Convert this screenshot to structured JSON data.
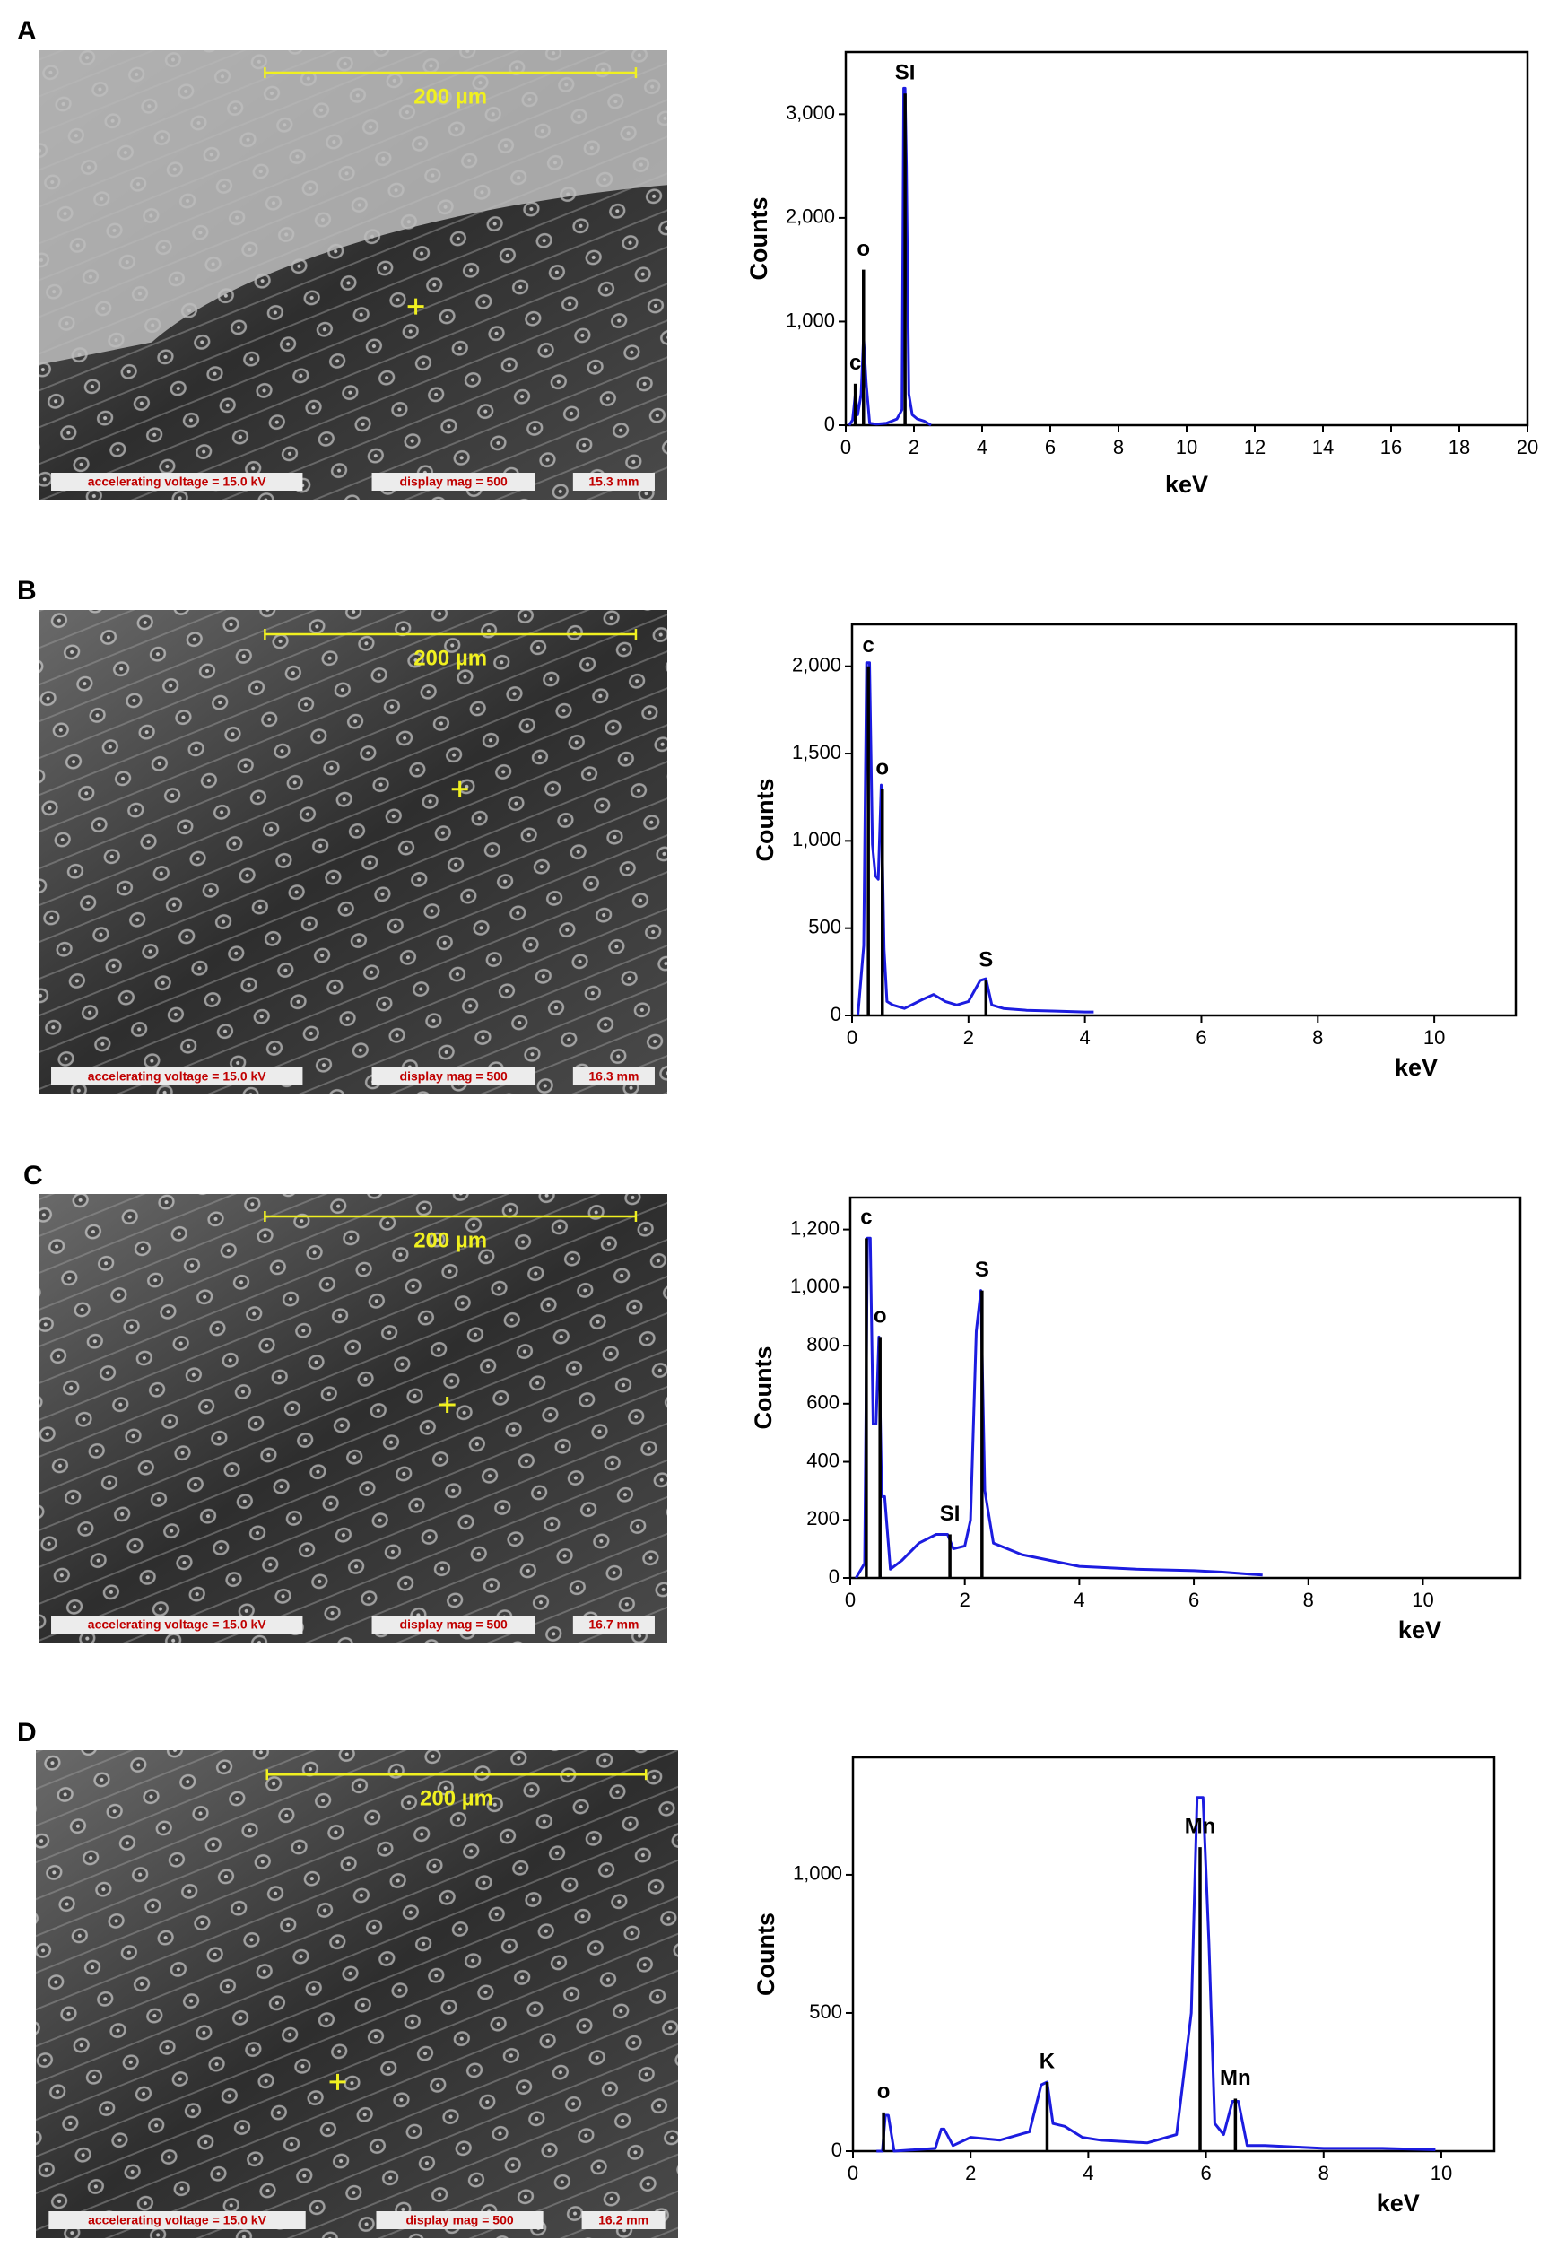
{
  "images": [
    {
      "panel": "A",
      "scale_bar": "200 µm",
      "voltage": "accelerating voltage = 15.0 kV",
      "mag": "display mag = 500",
      "distance": "15.3 mm"
    },
    {
      "panel": "B",
      "scale_bar": "200 µm",
      "voltage": "accelerating voltage = 15.0 kV",
      "mag": "display mag = 500",
      "distance": "16.3 mm"
    },
    {
      "panel": "C",
      "scale_bar": "200 µm",
      "voltage": "accelerating voltage = 15.0 kV",
      "mag": "display mag = 500",
      "distance": "16.7 mm"
    },
    {
      "panel": "D",
      "scale_bar": "200 µm",
      "voltage": "accelerating voltage = 15.0 kV",
      "mag": "display mag = 500",
      "distance": "16.2 mm"
    }
  ],
  "chart_data": [
    {
      "type": "line",
      "x_label": "keV",
      "y_label": "Counts",
      "x_label_align": "center",
      "xlim": [
        0,
        20
      ],
      "xticks": [
        0,
        2,
        4,
        6,
        8,
        10,
        12,
        14,
        16,
        18,
        20
      ],
      "ylim": [
        0,
        3600
      ],
      "yticks": [
        0,
        {
          "value": 1000,
          "label": "1,000"
        },
        {
          "value": 2000,
          "label": "2,000"
        },
        {
          "value": 3000,
          "label": "3,000"
        }
      ],
      "x": [
        0.1,
        0.2,
        0.28,
        0.35,
        0.45,
        0.52,
        0.6,
        0.7,
        0.9,
        1.2,
        1.5,
        1.65,
        1.7,
        1.74,
        1.78,
        1.85,
        1.95,
        2.1,
        2.3,
        2.5
      ],
      "series": [
        {
          "color": "#1c1ce0",
          "values": [
            0,
            50,
            300,
            100,
            300,
            850,
            400,
            20,
            10,
            20,
            60,
            150,
            3250,
            3250,
            2500,
            300,
            100,
            60,
            40,
            0
          ]
        }
      ],
      "markers": {
        "color": "#000000",
        "x": [
          0.28,
          0.52,
          1.74
        ],
        "values": [
          400,
          1500,
          3200
        ],
        "labels": [
          "c",
          "o",
          "SI"
        ]
      }
    },
    {
      "type": "line",
      "x_label": "keV",
      "y_label": "Counts",
      "x_label_align": "right",
      "xlim": [
        0,
        11.4
      ],
      "xticks": [
        0,
        2,
        4,
        6,
        8,
        10
      ],
      "ylim": [
        0,
        2240
      ],
      "yticks": [
        0,
        500,
        {
          "value": 1000,
          "label": "1,000"
        },
        {
          "value": 1500,
          "label": "1,500"
        },
        {
          "value": 2000,
          "label": "2,000"
        }
      ],
      "x": [
        0.1,
        0.2,
        0.25,
        0.3,
        0.35,
        0.4,
        0.45,
        0.5,
        0.55,
        0.6,
        0.7,
        0.9,
        1.2,
        1.4,
        1.6,
        1.8,
        2.0,
        2.2,
        2.3,
        2.4,
        2.6,
        3.0,
        3.5,
        4.0,
        4.15
      ],
      "series": [
        {
          "color": "#1c1ce0",
          "values": [
            0,
            400,
            2020,
            2020,
            980,
            800,
            780,
            1320,
            380,
            80,
            60,
            40,
            90,
            120,
            80,
            60,
            80,
            200,
            210,
            60,
            40,
            30,
            25,
            20,
            20
          ]
        }
      ],
      "markers": {
        "color": "#000000",
        "x": [
          0.28,
          0.52,
          2.3
        ],
        "values": [
          2000,
          1300,
          200
        ],
        "labels": [
          "c",
          "o",
          "S"
        ]
      }
    },
    {
      "type": "line",
      "x_label": "keV",
      "y_label": "Counts",
      "x_label_align": "right",
      "xlim": [
        0,
        11.7
      ],
      "xticks": [
        0,
        2,
        4,
        6,
        8,
        10
      ],
      "ylim": [
        0,
        1310
      ],
      "yticks": [
        0,
        200,
        400,
        600,
        800,
        {
          "value": 1000,
          "label": "1,000"
        },
        {
          "value": 1200,
          "label": "1,200"
        }
      ],
      "x": [
        0.1,
        0.25,
        0.3,
        0.35,
        0.4,
        0.45,
        0.5,
        0.55,
        0.6,
        0.7,
        0.9,
        1.2,
        1.5,
        1.7,
        1.8,
        2.0,
        2.1,
        2.2,
        2.28,
        2.35,
        2.5,
        3,
        3.5,
        4,
        5,
        6,
        6.5,
        7.2
      ],
      "series": [
        {
          "color": "#1c1ce0",
          "values": [
            0,
            50,
            1170,
            1170,
            530,
            530,
            830,
            280,
            280,
            30,
            60,
            120,
            150,
            150,
            100,
            110,
            200,
            850,
            990,
            300,
            120,
            80,
            60,
            40,
            30,
            25,
            20,
            10
          ]
        }
      ],
      "markers": {
        "color": "#000000",
        "x": [
          0.28,
          0.52,
          1.74,
          2.3
        ],
        "values": [
          1170,
          830,
          150,
          990
        ],
        "labels": [
          "c",
          "o",
          "SI",
          "S"
        ]
      }
    },
    {
      "type": "line",
      "x_label": "keV",
      "y_label": "Counts",
      "x_label_align": "right",
      "xlim": [
        0,
        10.9
      ],
      "xticks": [
        0,
        2,
        4,
        6,
        8,
        10
      ],
      "ylim": [
        0,
        1425
      ],
      "yticks": [
        0,
        500,
        {
          "value": 1000,
          "label": "1,000"
        }
      ],
      "x": [
        0.4,
        0.5,
        0.55,
        0.6,
        0.7,
        1.4,
        1.5,
        1.55,
        1.7,
        2.0,
        2.5,
        3.0,
        3.2,
        3.3,
        3.4,
        3.6,
        3.9,
        4.2,
        5,
        5.5,
        5.75,
        5.85,
        5.95,
        6.05,
        6.15,
        6.3,
        6.45,
        6.55,
        6.7,
        7,
        8,
        9,
        9.9
      ],
      "series": [
        {
          "color": "#1c1ce0",
          "values": [
            0,
            0,
            130,
            130,
            0,
            10,
            80,
            80,
            20,
            50,
            40,
            70,
            240,
            250,
            100,
            90,
            50,
            40,
            30,
            60,
            500,
            1280,
            1280,
            750,
            100,
            60,
            180,
            180,
            20,
            20,
            10,
            10,
            5
          ]
        }
      ],
      "markers": {
        "color": "#000000",
        "x": [
          0.52,
          3.3,
          5.9,
          6.5
        ],
        "values": [
          140,
          250,
          1100,
          190
        ],
        "labels": [
          "o",
          "K",
          "Mn",
          "Mn"
        ]
      }
    }
  ]
}
